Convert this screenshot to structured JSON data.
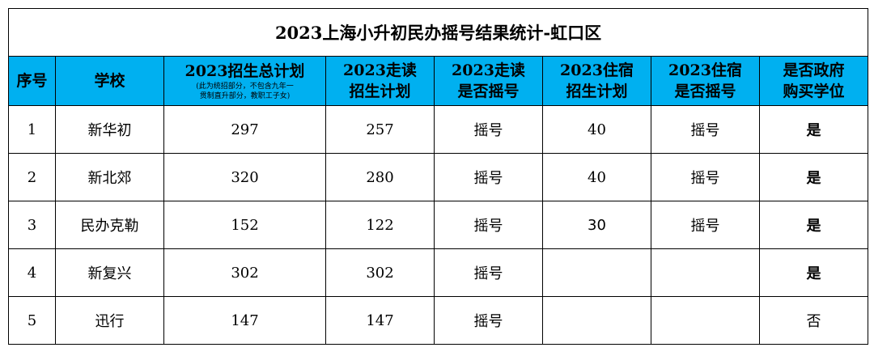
{
  "title": "2023上海小升初民办摇号结果统计-虹口区",
  "headers": {
    "seq": "序号",
    "school": "学校",
    "total_plan": "2023招生总计划",
    "total_plan_note_1": "(此为统招部分，不包含九年一",
    "total_plan_note_2": "贯制直升部分，教职工子女)",
    "day_plan_1": "2023走读",
    "day_plan_2": "招生计划",
    "day_lottery_1": "2023走读",
    "day_lottery_2": "是否摇号",
    "board_plan_1": "2023住宿",
    "board_plan_2": "招生计划",
    "board_lottery_1": "2023住宿",
    "board_lottery_2": "是否摇号",
    "gov_purchase_1": "是否政府",
    "gov_purchase_2": "购买学位"
  },
  "rows": [
    {
      "seq": "1",
      "school": "新华初",
      "total_plan": "297",
      "day_plan": "257",
      "day_lottery": "摇号",
      "board_plan": "40",
      "board_lottery": "摇号",
      "gov_purchase": "是"
    },
    {
      "seq": "2",
      "school": "新北郊",
      "total_plan": "320",
      "day_plan": "280",
      "day_lottery": "摇号",
      "board_plan": "40",
      "board_lottery": "摇号",
      "gov_purchase": "是"
    },
    {
      "seq": "3",
      "school": "民办克勒",
      "total_plan": "152",
      "day_plan": "122",
      "day_lottery": "摇号",
      "board_plan": "30",
      "board_lottery": "摇号",
      "gov_purchase": "是"
    },
    {
      "seq": "4",
      "school": "新复兴",
      "total_plan": "302",
      "day_plan": "302",
      "day_lottery": "摇号",
      "board_plan": "",
      "board_lottery": "",
      "gov_purchase": "是"
    },
    {
      "seq": "5",
      "school": "迅行",
      "total_plan": "147",
      "day_plan": "147",
      "day_lottery": "摇号",
      "board_plan": "",
      "board_lottery": "",
      "gov_purchase": "否"
    }
  ],
  "colors": {
    "header_bg": "#00b0f0",
    "border": "#000000"
  }
}
